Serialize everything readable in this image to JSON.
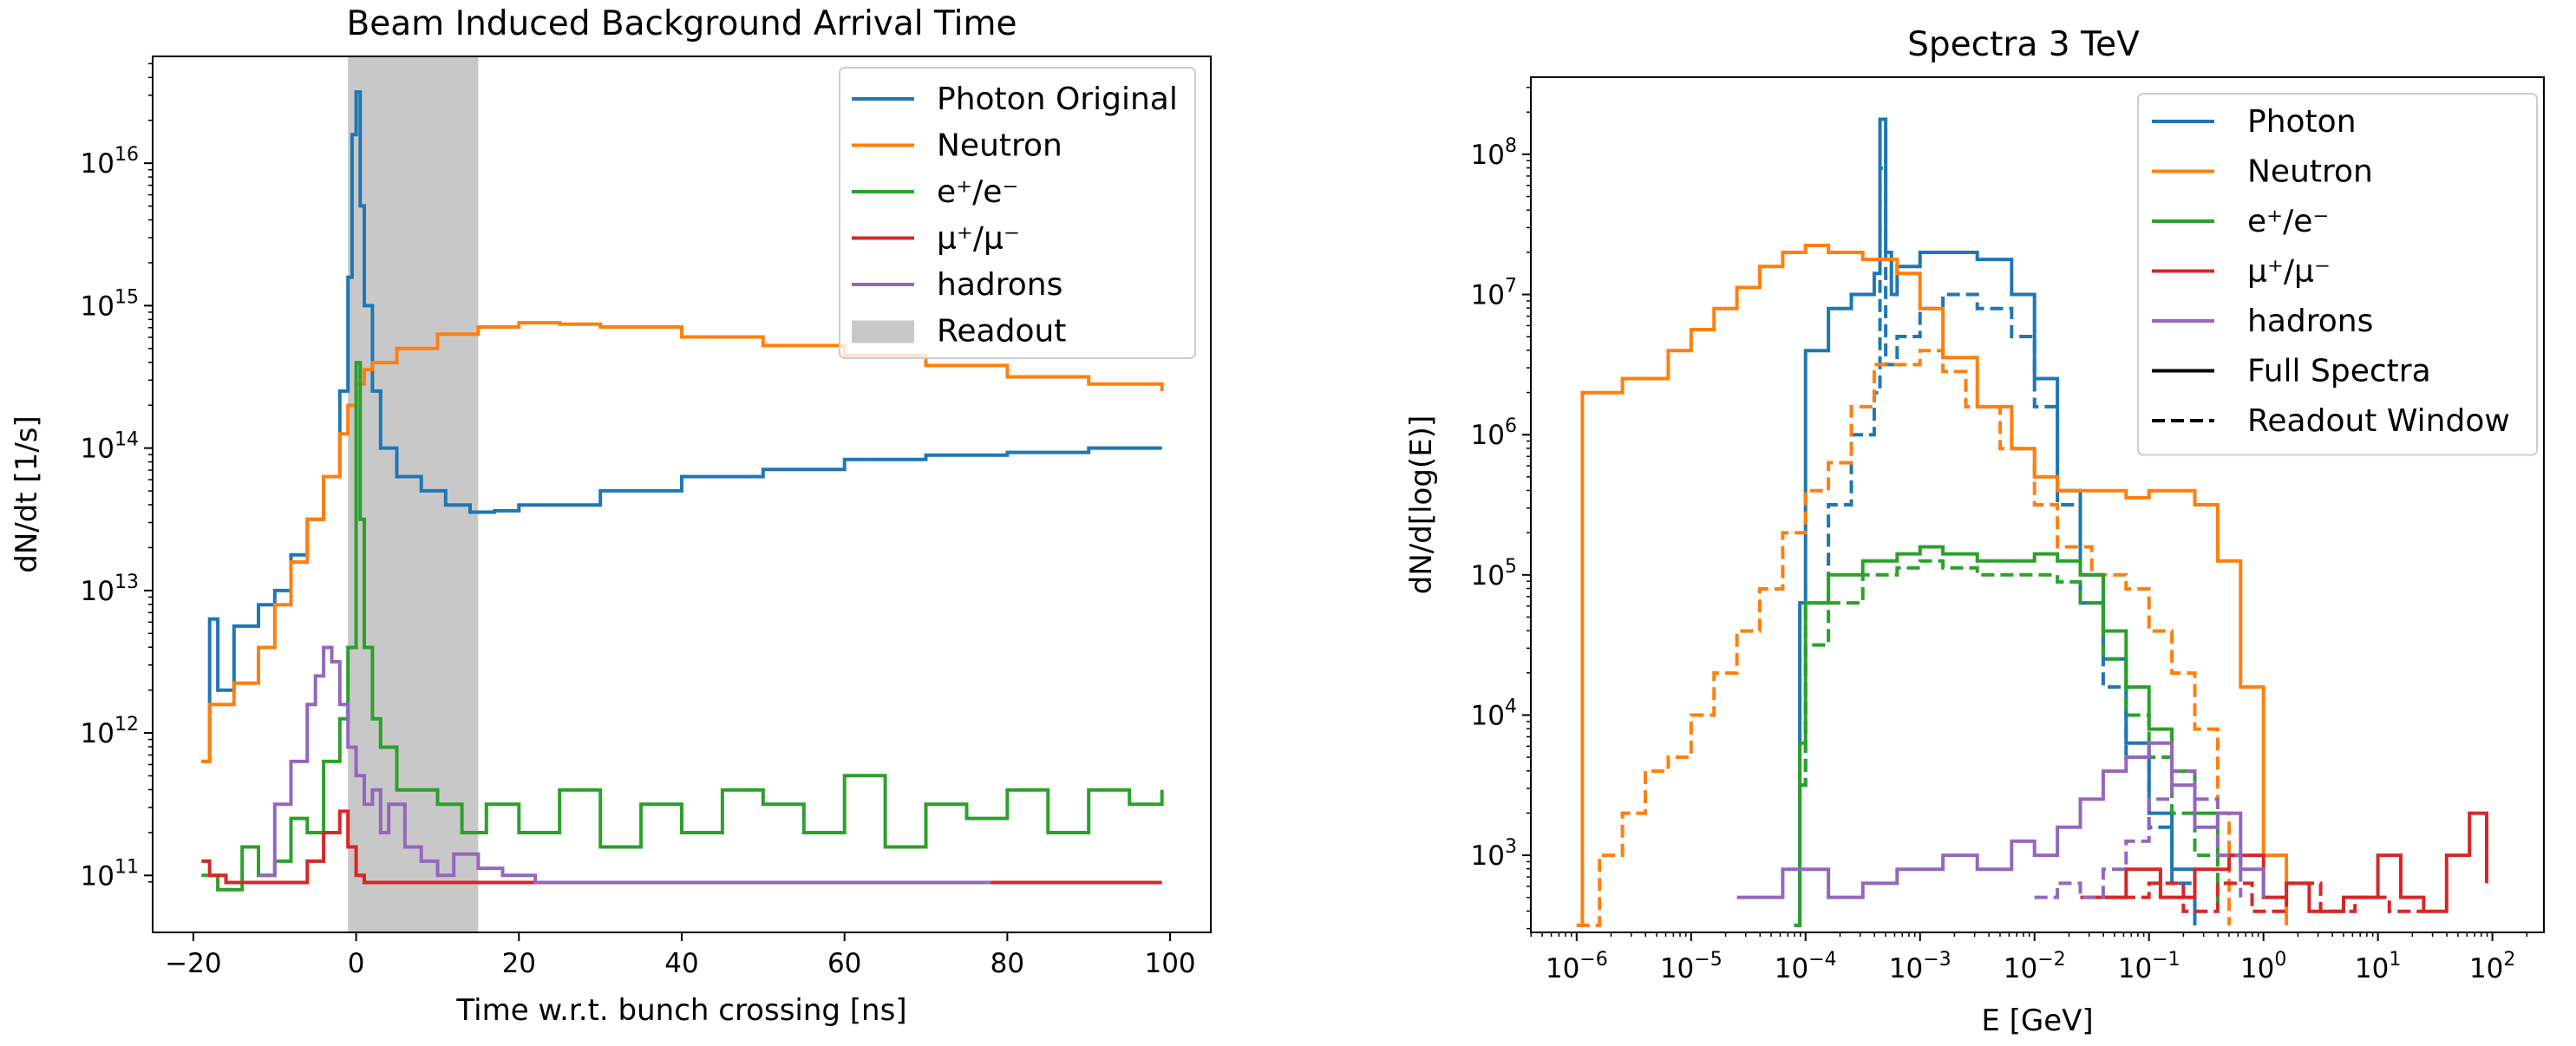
{
  "chart_data": [
    {
      "type": "step",
      "title": "Beam Induced Background Arrival Time",
      "xlabel": "Time w.r.t. bunch crossing [ns]",
      "ylabel": "dN/dt [1/s]",
      "yscale": "log",
      "xlim": [
        -25,
        105
      ],
      "ylim_exp": [
        10.6,
        16.75
      ],
      "x_ticks": [
        -20,
        0,
        20,
        40,
        60,
        80,
        100
      ],
      "x_tick_labels": [
        "−20",
        "0",
        "20",
        "40",
        "60",
        "80",
        "100"
      ],
      "y_tick_exps": [
        11,
        12,
        13,
        14,
        15,
        16
      ],
      "y_tick_base": "10",
      "y_tick_exp_labels": [
        "11",
        "12",
        "13",
        "14",
        "15",
        "16"
      ],
      "legend_position": "upper right",
      "readout_band": {
        "name": "Readout",
        "x0": -1,
        "x1": 15,
        "color": "#c8c8c8"
      },
      "series": [
        {
          "name": "Photon Original",
          "color": "#1f77b4",
          "x": [
            -19,
            -18,
            -17,
            -15,
            -12,
            -10,
            -8,
            -6,
            -4,
            -2,
            -1,
            -0.5,
            0,
            0.5,
            1,
            2,
            3,
            5,
            8,
            11,
            14,
            17,
            20,
            30,
            40,
            50,
            60,
            70,
            80,
            90,
            99
          ],
          "log10_y": [
            11.8,
            12.8,
            12.3,
            12.75,
            12.9,
            13.0,
            13.25,
            13.5,
            13.8,
            14.4,
            15.2,
            16.2,
            16.5,
            15.7,
            15.0,
            14.4,
            14.0,
            13.8,
            13.7,
            13.6,
            13.55,
            13.56,
            13.6,
            13.7,
            13.8,
            13.85,
            13.92,
            13.95,
            13.97,
            14.0,
            14.0
          ]
        },
        {
          "name": "Neutron",
          "color": "#ff7f0e",
          "x": [
            -19,
            -18,
            -15,
            -12,
            -10,
            -8,
            -6,
            -4,
            -2,
            -1,
            0,
            1,
            2,
            5,
            10,
            15,
            20,
            25,
            30,
            40,
            50,
            60,
            70,
            80,
            90,
            99
          ],
          "log10_y": [
            11.8,
            12.2,
            12.35,
            12.6,
            12.9,
            13.2,
            13.5,
            13.8,
            14.1,
            14.3,
            14.45,
            14.55,
            14.6,
            14.7,
            14.8,
            14.85,
            14.88,
            14.87,
            14.85,
            14.78,
            14.72,
            14.65,
            14.58,
            14.5,
            14.45,
            14.4
          ]
        },
        {
          "name": "e⁺/e⁻",
          "color": "#2ca02c",
          "x": [
            -19,
            -17,
            -14,
            -12,
            -10,
            -8,
            -6,
            -4,
            -2,
            -1,
            0,
            0.5,
            1,
            2,
            3,
            5,
            8,
            10,
            13,
            16,
            20,
            25,
            30,
            35,
            40,
            45,
            50,
            55,
            60,
            65,
            70,
            75,
            80,
            85,
            90,
            95,
            99
          ],
          "log10_y": [
            11.0,
            10.9,
            11.2,
            11.0,
            11.1,
            11.4,
            11.3,
            11.8,
            12.1,
            12.6,
            14.6,
            13.5,
            12.6,
            12.1,
            11.9,
            11.6,
            11.6,
            11.5,
            11.3,
            11.5,
            11.3,
            11.6,
            11.2,
            11.5,
            11.3,
            11.6,
            11.5,
            11.3,
            11.7,
            11.2,
            11.5,
            11.4,
            11.6,
            11.3,
            11.6,
            11.5,
            11.6
          ]
        },
        {
          "name": "μ⁺/μ⁻",
          "color": "#d62728",
          "x": [
            -19,
            -18,
            -16,
            -10,
            -6,
            -4,
            -2,
            -1,
            0,
            1,
            2,
            4,
            8,
            28,
            38,
            50,
            62,
            85,
            99
          ],
          "log10_y": [
            11.1,
            11.0,
            10.95,
            10.95,
            11.1,
            11.3,
            11.45,
            11.2,
            11.0,
            10.95,
            10.95,
            10.95,
            10.95,
            10.95,
            10.95,
            10.95,
            10.95,
            10.95,
            10.95
          ]
        },
        {
          "name": "hadrons",
          "color": "#9467bd",
          "x": [
            -12,
            -10,
            -8,
            -6,
            -5,
            -4,
            -3,
            -2,
            -1,
            0,
            1,
            2,
            3,
            4,
            6,
            8,
            10,
            12,
            15,
            18,
            22,
            40,
            48,
            60,
            66,
            78
          ],
          "log10_y": [
            11.0,
            11.5,
            11.8,
            12.2,
            12.4,
            12.6,
            12.5,
            12.2,
            11.9,
            11.7,
            11.5,
            11.6,
            11.3,
            11.5,
            11.2,
            11.1,
            11.0,
            11.15,
            11.05,
            11.0,
            10.95,
            10.95,
            10.95,
            10.95,
            10.95,
            10.95
          ]
        }
      ]
    },
    {
      "type": "step",
      "title": "Spectra 3 TeV",
      "xlabel": "E [GeV]",
      "ylabel": "dN/d[log(E)]",
      "xscale": "log",
      "yscale": "log",
      "xlim_exp": [
        -6.4,
        2.45
      ],
      "ylim_exp": [
        2.45,
        8.55
      ],
      "x_tick_exps": [
        -6,
        -5,
        -4,
        -3,
        -2,
        -1,
        0,
        1,
        2
      ],
      "x_tick_exp_labels": [
        "−6",
        "−5",
        "−4",
        "−3",
        "−2",
        "−1",
        "0",
        "1",
        "2"
      ],
      "y_tick_exps": [
        3,
        4,
        5,
        6,
        7,
        8
      ],
      "y_tick_exp_labels": [
        "3",
        "4",
        "5",
        "6",
        "7",
        "8"
      ],
      "tick_base": "10",
      "legend_position": "upper right",
      "linestyles": [
        {
          "name": "Full Spectra",
          "dash": "solid"
        },
        {
          "name": "Readout Window",
          "dash": "dashed"
        }
      ],
      "series": [
        {
          "name": "Photon",
          "color": "#1f77b4",
          "linestyle": "solid",
          "log10_x": [
            -4.1,
            -4.05,
            -4.0,
            -3.8,
            -3.6,
            -3.4,
            -3.35,
            -3.3,
            -3.25,
            -3.2,
            -3.0,
            -2.8,
            -2.5,
            -2.2,
            -2.0,
            -1.8,
            -1.6,
            -1.4,
            -1.2,
            -1.0,
            -0.8,
            -0.6
          ],
          "log10_y": [
            2.5,
            4.8,
            6.6,
            6.9,
            7.0,
            7.15,
            8.25,
            7.3,
            7.0,
            7.2,
            7.3,
            7.3,
            7.25,
            7.0,
            6.4,
            5.6,
            5.0,
            4.4,
            3.8,
            3.3,
            2.9,
            2.5
          ]
        },
        {
          "name": "Photon Readout",
          "color": "#1f77b4",
          "linestyle": "dashed",
          "log10_x": [
            -4.05,
            -4.0,
            -3.8,
            -3.6,
            -3.4,
            -3.35,
            -3.3,
            -3.2,
            -3.0,
            -2.8,
            -2.5,
            -2.2,
            -2.0,
            -1.8,
            -1.6,
            -1.4,
            -1.2,
            -1.0,
            -0.8,
            -0.6
          ],
          "log10_y": [
            3.5,
            4.8,
            5.5,
            6.0,
            6.3,
            7.9,
            6.5,
            6.7,
            6.9,
            7.0,
            6.9,
            6.7,
            6.2,
            5.5,
            4.8,
            4.2,
            3.7,
            3.2,
            2.8,
            2.5
          ]
        },
        {
          "name": "Neutron",
          "color": "#ff7f0e",
          "linestyle": "solid",
          "log10_x": [
            -6.0,
            -5.95,
            -5.6,
            -5.2,
            -5.0,
            -4.8,
            -4.6,
            -4.4,
            -4.2,
            -4.0,
            -3.8,
            -3.5,
            -3.2,
            -3.0,
            -2.8,
            -2.5,
            -2.2,
            -2.0,
            -1.8,
            -1.5,
            -1.2,
            -1.0,
            -0.8,
            -0.6,
            -0.4,
            -0.2,
            0.0,
            0.2
          ],
          "log10_y": [
            2.5,
            6.3,
            6.4,
            6.6,
            6.75,
            6.9,
            7.05,
            7.2,
            7.3,
            7.35,
            7.3,
            7.25,
            7.15,
            6.9,
            6.55,
            6.2,
            5.9,
            5.7,
            5.6,
            5.6,
            5.55,
            5.6,
            5.6,
            5.5,
            5.1,
            4.2,
            3.0,
            2.5
          ]
        },
        {
          "name": "Neutron Readout",
          "color": "#ff7f0e",
          "linestyle": "dashed",
          "log10_x": [
            -6.0,
            -5.8,
            -5.6,
            -5.4,
            -5.2,
            -5.0,
            -4.8,
            -4.6,
            -4.4,
            -4.2,
            -4.0,
            -3.8,
            -3.6,
            -3.4,
            -3.2,
            -3.0,
            -2.8,
            -2.6,
            -2.3,
            -2.0,
            -1.8,
            -1.5,
            -1.2,
            -1.0,
            -0.8,
            -0.6,
            -0.4,
            -0.3
          ],
          "log10_y": [
            2.5,
            3.0,
            3.3,
            3.6,
            3.7,
            4.0,
            4.3,
            4.6,
            4.9,
            5.3,
            5.6,
            5.8,
            6.2,
            6.5,
            6.5,
            6.6,
            6.45,
            6.2,
            5.9,
            5.5,
            5.2,
            5.0,
            4.9,
            4.6,
            4.3,
            3.9,
            3.3,
            2.5
          ]
        },
        {
          "name": "e⁺/e⁻",
          "color": "#2ca02c",
          "linestyle": "solid",
          "log10_x": [
            -4.1,
            -4.05,
            -4.0,
            -3.8,
            -3.5,
            -3.2,
            -3.0,
            -2.8,
            -2.5,
            -2.2,
            -2.0,
            -1.8,
            -1.6,
            -1.4,
            -1.2,
            -1.0,
            -0.8,
            -0.6,
            -0.4,
            -0.2
          ],
          "log10_y": [
            2.5,
            3.8,
            4.8,
            5.0,
            5.1,
            5.15,
            5.2,
            5.15,
            5.1,
            5.1,
            5.15,
            5.1,
            5.0,
            4.6,
            4.2,
            3.9,
            3.6,
            3.3,
            3.0,
            2.9
          ]
        },
        {
          "name": "e⁺/e⁻ Readout",
          "color": "#2ca02c",
          "linestyle": "dashed",
          "log10_x": [
            -4.05,
            -4.0,
            -3.8,
            -3.5,
            -3.2,
            -3.0,
            -2.8,
            -2.5,
            -2.2,
            -2.0,
            -1.8,
            -1.6,
            -1.4,
            -1.2,
            -1.0,
            -0.8,
            -0.6,
            -0.4
          ],
          "log10_y": [
            3.5,
            4.5,
            4.8,
            5.0,
            5.05,
            5.1,
            5.05,
            5.0,
            5.0,
            5.0,
            4.95,
            4.8,
            4.4,
            4.0,
            3.7,
            3.3,
            3.0,
            2.6
          ]
        },
        {
          "name": "μ⁺/μ⁻",
          "color": "#d62728",
          "linestyle": "solid",
          "log10_x": [
            -1.6,
            -1.2,
            -0.9,
            -0.6,
            -0.3,
            0.0,
            0.2,
            0.4,
            0.7,
            1.0,
            1.2,
            1.4,
            1.6,
            1.8,
            1.95
          ],
          "log10_y": [
            2.7,
            2.9,
            2.7,
            2.9,
            3.0,
            2.7,
            2.8,
            2.6,
            2.7,
            3.0,
            2.7,
            2.6,
            3.0,
            3.3,
            2.8
          ]
        },
        {
          "name": "μ⁺/μ⁻ Readout",
          "color": "#d62728",
          "linestyle": "dashed",
          "log10_x": [
            -1.4,
            -1.0,
            -0.7,
            -0.4,
            -0.1,
            0.2,
            0.5,
            0.8,
            1.1,
            1.4
          ],
          "log10_y": [
            2.7,
            2.8,
            2.6,
            2.8,
            2.6,
            2.8,
            2.6,
            2.7,
            2.6,
            2.6
          ]
        },
        {
          "name": "hadrons",
          "color": "#9467bd",
          "linestyle": "solid",
          "log10_x": [
            -4.6,
            -4.2,
            -3.8,
            -3.5,
            -3.2,
            -2.8,
            -2.5,
            -2.2,
            -2.0,
            -1.8,
            -1.6,
            -1.4,
            -1.2,
            -1.0,
            -0.8,
            -0.6,
            -0.4,
            -0.2,
            0.0
          ],
          "log10_y": [
            2.7,
            2.9,
            2.7,
            2.8,
            2.9,
            3.0,
            2.9,
            3.1,
            3.0,
            3.2,
            3.4,
            3.6,
            3.7,
            3.8,
            3.5,
            3.2,
            3.3,
            2.9,
            2.7
          ]
        },
        {
          "name": "hadrons Readout",
          "color": "#9467bd",
          "linestyle": "dashed",
          "log10_x": [
            -2.0,
            -1.8,
            -1.6,
            -1.4,
            -1.2,
            -1.0,
            -0.8,
            -0.6,
            -0.4,
            -0.2
          ],
          "log10_y": [
            2.7,
            2.8,
            2.7,
            2.9,
            3.1,
            3.4,
            3.6,
            3.4,
            3.0,
            2.7
          ]
        }
      ]
    }
  ]
}
